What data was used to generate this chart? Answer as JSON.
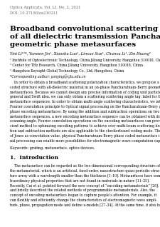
{
  "journal_line1": "Optica Applicata, Vol. LI, No. 2, 2021",
  "journal_line2": "DOI: 10.37190/oa210211",
  "title_line1": "Broadband convolutional scattering characteristics",
  "title_line2": "of all dielectric transmission Pancharatnam–Berry",
  "title_line3": "geometric phase metasurfaces",
  "authors": "Yini Li¹³*, Yanwen Jin¹, Xiaoshu Luo¹, Linxue Sun¹, Chunxu Li¹, Zin Huang²",
  "affil1": "¹ Institute of Optoelectronic Technology, China Jiliang University, Hangzhou 310018, China",
  "affil2": "² Center for THz Research, China Jiliang University, Hangzhou 310018, China",
  "affil3": "³ Hangzhou Keysight Global Technology Co., Ltd, Hangzhou, China",
  "affil4": "*Corresponding author: yanying@cjlu.edu.cn",
  "abstract_lines": [
    "    In order to obtain a broadband scattering polarization characteristics, we propose a sequentially",
    "coded structure with all-dielectric material in an on-phase Pancharatnam–Berry geometric phase encoding",
    "metasurfaces. Because we cannot design any precise information of coding unit particles, according to the",
    "general and Swift idea, we can only obtain a scattering scattering angle tag: label for the basic coding",
    "metasurface sequences. In order to obtain multi-angle scattering characteristics, we introduce the",
    "Fourier convolution principle to Optical signal processing on the Pancharatnam–Berry geometric",
    "phase encoding metasurfaces. By using the addition and subtraction operations on two encoding",
    "metasurface sequences, a new encoding metasurface sequence can be obtained with different the",
    "scanning angle. Fourier convolution operations on the encoding metasurfaces can provide an effi-",
    "cient method to optimizing encoding patterns to achieve over multi-beam scattering beams. The addi-",
    "tion and subtraction methods are also applicable to the checkerboard coding mode. The possible value",
    "of Jones as convolution value, physical Pancharatnam–Berry phase coded metasurface in digital sig-",
    "nal processing can enable more possibilities for electromagnetic wave computation capability."
  ],
  "keywords": "Keywords: grating, metasurface, optics devices.",
  "section_title": "1.  Introduction",
  "intro_lines": [
    "    The metasurface can be regarded as the two-dimensional corresponding structure of",
    "the metamaterial, which is an artificial, fixed-order, nanostructure quasi-periodic struc-",
    "ture array with a wavelength smaller than the thickness [1–10]. Metasurfaces have some ex-",
    "traordinary physical properties that are not found in materials in nature [11–25].",
    "Recently, Cui et al. pointed forward the new concept of “encoding metamaterials” [26],",
    "and briefly described the related methods of programmable metamaterials. Also, the",
    "concept of encoding metasurface began to capture people’s attention. For example, it",
    "can flexibly and efficiently change the characteristics of electromagnetic wave ampli-",
    "tude, phase, propagation mode and define a-models [27–34]. At the same time, it also has"
  ],
  "bg_color": "#ffffff",
  "text_color": "#000000",
  "gray_color": "#666666"
}
